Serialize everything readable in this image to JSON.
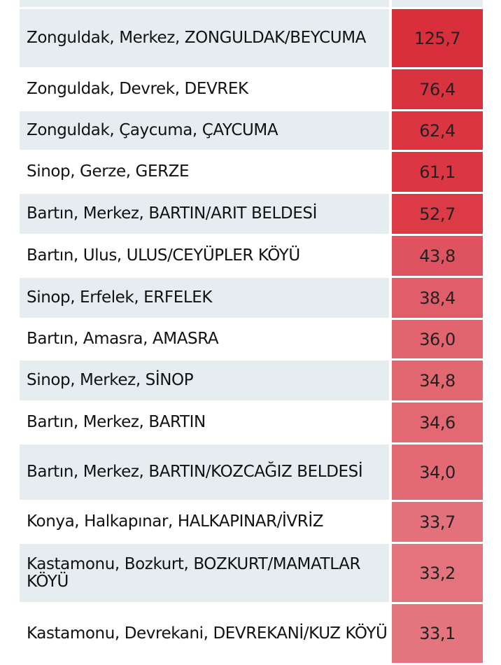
{
  "rows": [
    {
      "name": "",
      "value": "",
      "color": "#e6edf1"
    },
    {
      "name": "Zonguldak, Merkez, ZONGULDAK/BEYCUMA",
      "value": "125,7",
      "color": "#d92f3d"
    },
    {
      "name": "Zonguldak, Devrek, DEVREK",
      "value": "76,4",
      "color": "#da3340"
    },
    {
      "name": "Zonguldak, Çaycuma, ÇAYCUMA",
      "value": "62,4",
      "color": "#db3542"
    },
    {
      "name": "Sinop, Gerze, GERZE",
      "value": "61,1",
      "color": "#db3643"
    },
    {
      "name": "Bartın, Merkez, BARTIN/ARIT BELDESİ",
      "value": "52,7",
      "color": "#dc3a47"
    },
    {
      "name": "Bartın, Ulus, ULUS/CEYÜPLER KÖYÜ",
      "value": "43,8",
      "color": "#df5360"
    },
    {
      "name": "Sinop, Erfelek, ERFELEK",
      "value": "38,4",
      "color": "#e05e6a"
    },
    {
      "name": "Bartın, Amasra, AMASRA",
      "value": "36,0",
      "color": "#e1646f"
    },
    {
      "name": "Sinop, Merkez, SİNOP",
      "value": "34,8",
      "color": "#e26771"
    },
    {
      "name": "Bartın, Merkez, BARTIN",
      "value": "34,6",
      "color": "#e26872"
    },
    {
      "name": "Bartın, Merkez, BARTIN/KOZCAĞIZ BELDESİ",
      "value": "34,0",
      "color": "#e36a75"
    },
    {
      "name": "Konya, Halkapınar, HALKAPINAR/İVRİZ",
      "value": "33,7",
      "color": "#e3717b"
    },
    {
      "name": "Kastamonu, Bozkurt, BOZKURT/MAMATLAR KÖYÜ",
      "value": "33,2",
      "color": "#e4737d"
    },
    {
      "name": "Kastamonu, Devrekani, DEVREKANİ/KUZ KÖYÜ",
      "value": "33,1",
      "color": "#e4747e"
    }
  ]
}
